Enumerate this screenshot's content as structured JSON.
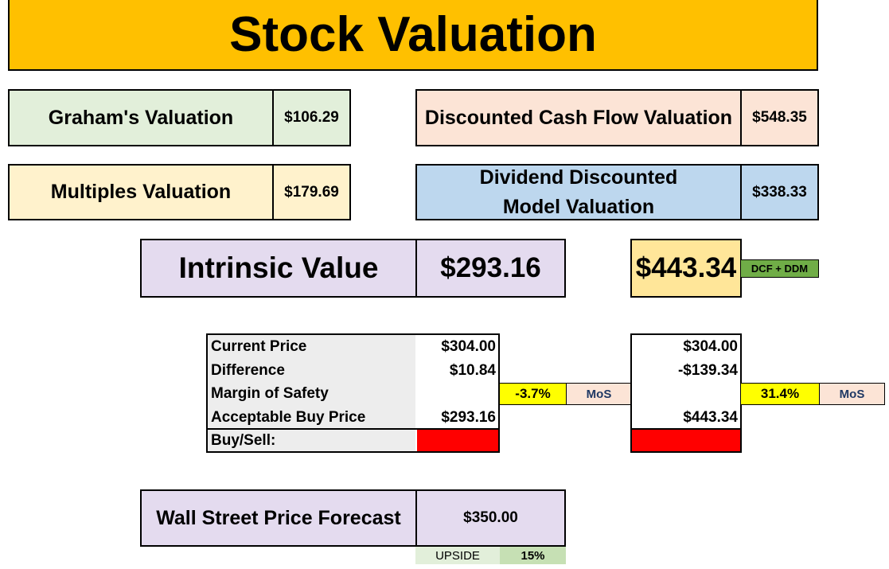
{
  "title": "Stock Valuation",
  "valuations": {
    "graham": {
      "label": "Graham's Valuation",
      "value": "$106.29"
    },
    "dcf": {
      "label": "Discounted Cash Flow Valuation",
      "value": "$548.35"
    },
    "multiples": {
      "label": "Multiples Valuation",
      "value": "$179.69"
    },
    "ddm": {
      "label": "Dividend Discounted Model Valuation",
      "value": "$338.33"
    }
  },
  "intrinsic": {
    "label": "Intrinsic Value",
    "value": "$293.16"
  },
  "combined": {
    "value": "$443.34",
    "tag": "DCF + DDM"
  },
  "table1": {
    "rows": [
      {
        "label": "Current Price",
        "value": "$304.00"
      },
      {
        "label": "Difference",
        "value": "$10.84"
      },
      {
        "label": "Margin of Safety",
        "value": ""
      },
      {
        "label": "Acceptable Buy Price",
        "value": "$293.16"
      }
    ],
    "buysell_label": "Buy/Sell:",
    "mos_value": "-3.7%",
    "mos_label": "MoS"
  },
  "table2": {
    "values": [
      "$304.00",
      "-$139.34",
      "",
      "$443.34"
    ],
    "mos_value": "31.4%",
    "mos_label": "MoS"
  },
  "forecast": {
    "label": "Wall Street Price Forecast",
    "value": "$350.00",
    "upside_label": "UPSIDE",
    "upside_value": "15%"
  },
  "colors": {
    "title_bg": "#ffc000",
    "graham_bg": "#e2efda",
    "dcf_bg": "#fce4d6",
    "multiples_bg": "#fff2cc",
    "ddm_bg": "#bdd7ee",
    "intrinsic_bg": "#e4dbef",
    "combined_bg": "#ffe699",
    "tag_bg": "#70ad47",
    "mos_bg": "#ffff00",
    "mos_label_bg": "#fce4d6",
    "sell_bg": "#ff0000",
    "label_col_bg": "#ededed",
    "upside_label_bg": "#e2efda",
    "upside_val_bg": "#c6e0b4"
  }
}
